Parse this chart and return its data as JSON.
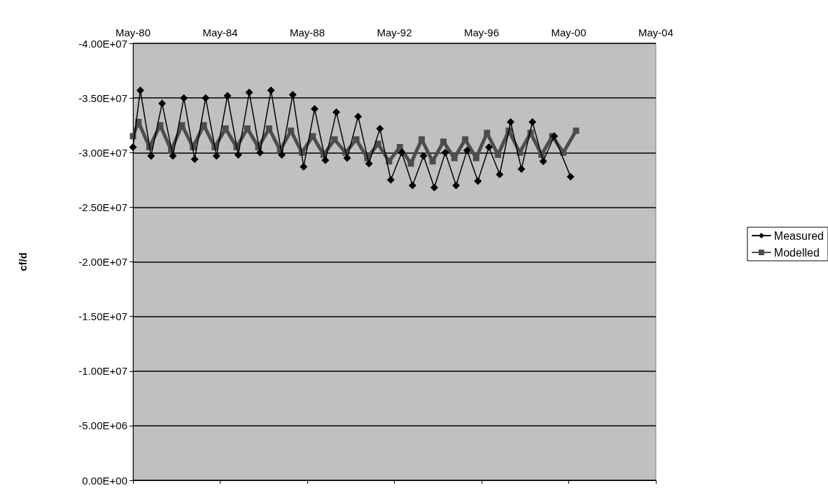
{
  "chart_data": {
    "type": "line",
    "ylabel": "cf/d",
    "xlim": [
      "1980-05",
      "2004-05"
    ],
    "xticks": [
      {
        "value": "1980-05",
        "label": "May-80"
      },
      {
        "value": "1984-05",
        "label": "May-84"
      },
      {
        "value": "1988-05",
        "label": "May-88"
      },
      {
        "value": "1992-05",
        "label": "May-92"
      },
      {
        "value": "1996-05",
        "label": "May-96"
      },
      {
        "value": "2000-05",
        "label": "May-00"
      },
      {
        "value": "2004-05",
        "label": "May-04"
      }
    ],
    "ylim": [
      0,
      -40000000
    ],
    "yticks": [
      {
        "value": 0,
        "label": "0.00E+00"
      },
      {
        "value": -5000000,
        "label": "-5.00E+06"
      },
      {
        "value": -10000000,
        "label": "-1.00E+07"
      },
      {
        "value": -15000000,
        "label": "-1.50E+07"
      },
      {
        "value": -20000000,
        "label": "-2.00E+07"
      },
      {
        "value": -25000000,
        "label": "-2.50E+07"
      },
      {
        "value": -30000000,
        "label": "-3.00E+07"
      },
      {
        "value": -35000000,
        "label": "-3.50E+07"
      },
      {
        "value": -40000000,
        "label": "-4.00E+07"
      }
    ],
    "grid": "y",
    "legend": "right",
    "line_style": "solid",
    "series": [
      {
        "name": "Measured",
        "color": "#000000",
        "marker": "diamond",
        "x": [
          "1980-05",
          "1980-09",
          "1981-03",
          "1981-09",
          "1982-03",
          "1982-09",
          "1983-03",
          "1983-09",
          "1984-03",
          "1984-09",
          "1985-03",
          "1985-09",
          "1986-03",
          "1986-09",
          "1987-03",
          "1987-09",
          "1988-03",
          "1988-09",
          "1989-03",
          "1989-09",
          "1990-03",
          "1990-09",
          "1991-03",
          "1991-09",
          "1992-03",
          "1992-09",
          "1993-03",
          "1993-09",
          "1994-03",
          "1994-09",
          "1995-03",
          "1995-09",
          "1996-03",
          "1996-09",
          "1997-03",
          "1997-09",
          "1998-03",
          "1998-09",
          "1999-03",
          "1999-09",
          "2000-06"
        ],
        "values": [
          -30500000,
          -35700000,
          -29700000,
          -34500000,
          -29700000,
          -35000000,
          -29400000,
          -35000000,
          -29700000,
          -35200000,
          -29800000,
          -35500000,
          -30000000,
          -35700000,
          -29800000,
          -35300000,
          -28700000,
          -34000000,
          -29300000,
          -33700000,
          -29500000,
          -33300000,
          -29000000,
          -32200000,
          -27500000,
          -30000000,
          -27000000,
          -29700000,
          -26800000,
          -30000000,
          -27000000,
          -30200000,
          -27400000,
          -30500000,
          -28000000,
          -32800000,
          -28500000,
          -32800000,
          -29200000,
          -31500000,
          -27800000
        ]
      },
      {
        "name": "Modelled",
        "color": "#4d4d4d",
        "marker": "square",
        "x": [
          "1980-05",
          "1980-08",
          "1981-02",
          "1981-08",
          "1982-02",
          "1982-08",
          "1983-02",
          "1983-08",
          "1984-02",
          "1984-08",
          "1985-02",
          "1985-08",
          "1986-02",
          "1986-08",
          "1987-02",
          "1987-08",
          "1988-02",
          "1988-08",
          "1989-02",
          "1989-08",
          "1990-02",
          "1990-08",
          "1991-02",
          "1991-08",
          "1992-02",
          "1992-08",
          "1993-02",
          "1993-08",
          "1994-02",
          "1994-08",
          "1995-02",
          "1995-08",
          "1996-02",
          "1996-08",
          "1997-02",
          "1997-08",
          "1998-02",
          "1998-08",
          "1999-02",
          "1999-08",
          "2000-02",
          "2000-09"
        ],
        "values": [
          -31500000,
          -32800000,
          -30500000,
          -32500000,
          -30200000,
          -32500000,
          -30500000,
          -32500000,
          -30500000,
          -32200000,
          -30500000,
          -32200000,
          -30500000,
          -32200000,
          -30200000,
          -32000000,
          -30000000,
          -31500000,
          -29800000,
          -31200000,
          -30000000,
          -31200000,
          -29500000,
          -30800000,
          -29200000,
          -30500000,
          -29000000,
          -31200000,
          -29200000,
          -31000000,
          -29500000,
          -31200000,
          -29500000,
          -31800000,
          -29800000,
          -32000000,
          -30000000,
          -31800000,
          -29800000,
          -31500000,
          -30000000,
          -32000000
        ]
      }
    ]
  }
}
